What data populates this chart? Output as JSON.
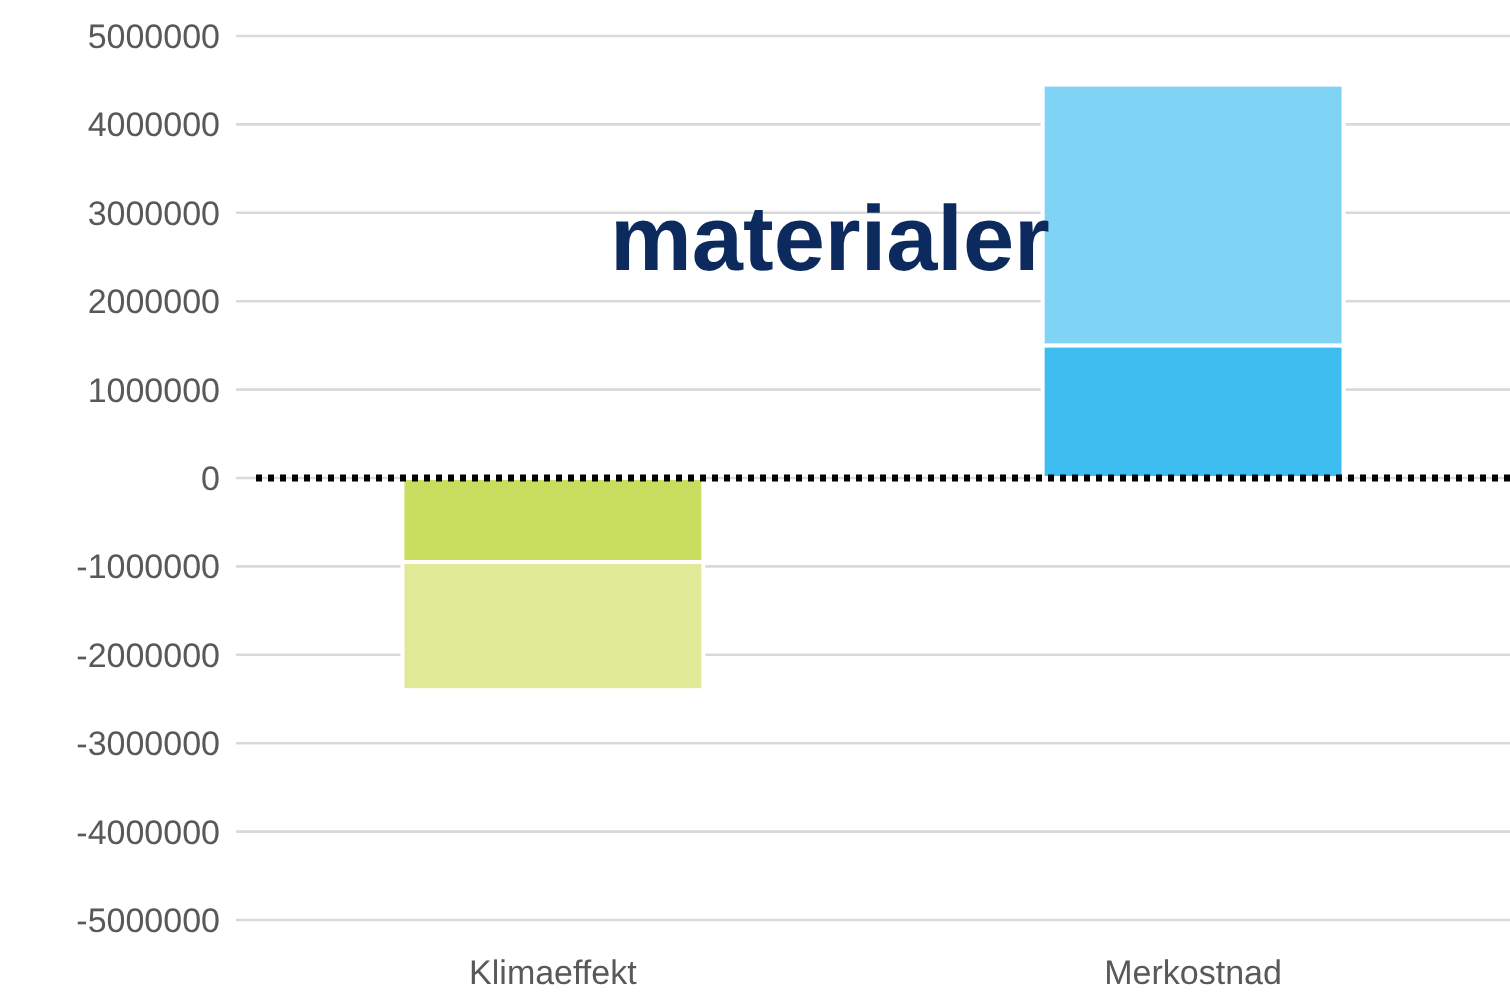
{
  "chart_data": {
    "type": "bar",
    "title": "materialer",
    "categories": [
      "Klimaeffekt",
      "Merkostnad"
    ],
    "stacked": true,
    "series": [
      {
        "colors": [
          "#c9de5f",
          "#3dbdf0"
        ],
        "values": [
          -950000,
          1500000
        ]
      },
      {
        "colors": [
          "#dfe996",
          "#7fd3f5"
        ],
        "values": [
          -1450000,
          2950000
        ]
      }
    ],
    "ylim": [
      -5000000,
      5000000
    ],
    "yticks": [
      -5000000,
      -4000000,
      -3000000,
      -2000000,
      -1000000,
      0,
      1000000,
      2000000,
      3000000,
      4000000,
      5000000
    ],
    "grid": "y",
    "ref_lines": [
      {
        "axis": "y",
        "value": 0,
        "color": "#000000",
        "line_style": "dotted"
      }
    ]
  }
}
